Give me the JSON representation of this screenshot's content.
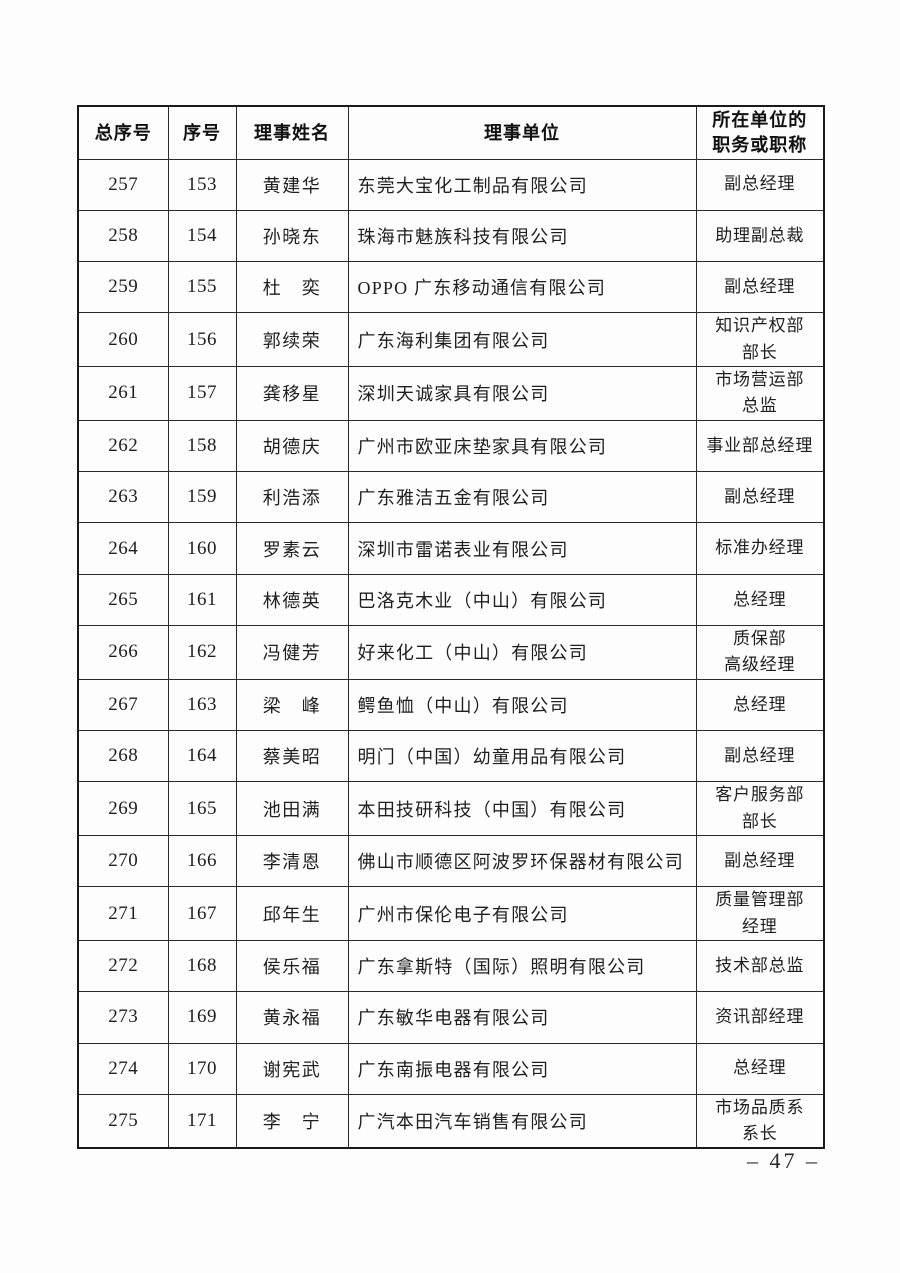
{
  "table": {
    "headers": [
      "总序号",
      "序号",
      "理事姓名",
      "理事单位",
      "所在单位的\n职务或职称"
    ],
    "rows": [
      {
        "total_no": "257",
        "no": "153",
        "name": "黄建华",
        "unit": "东莞大宝化工制品有限公司",
        "position": "副总经理"
      },
      {
        "total_no": "258",
        "no": "154",
        "name": "孙晓东",
        "unit": "珠海市魅族科技有限公司",
        "position": "助理副总裁"
      },
      {
        "total_no": "259",
        "no": "155",
        "name": "杜　奕",
        "unit": "OPPO 广东移动通信有限公司",
        "position": "副总经理"
      },
      {
        "total_no": "260",
        "no": "156",
        "name": "郭续荣",
        "unit": "广东海利集团有限公司",
        "position": "知识产权部\n部长"
      },
      {
        "total_no": "261",
        "no": "157",
        "name": "龚移星",
        "unit": "深圳天诚家具有限公司",
        "position": "市场营运部\n总监"
      },
      {
        "total_no": "262",
        "no": "158",
        "name": "胡德庆",
        "unit": "广州市欧亚床垫家具有限公司",
        "position": "事业部总经理"
      },
      {
        "total_no": "263",
        "no": "159",
        "name": "利浩添",
        "unit": "广东雅洁五金有限公司",
        "position": "副总经理"
      },
      {
        "total_no": "264",
        "no": "160",
        "name": "罗素云",
        "unit": "深圳市雷诺表业有限公司",
        "position": "标准办经理"
      },
      {
        "total_no": "265",
        "no": "161",
        "name": "林德英",
        "unit": "巴洛克木业（中山）有限公司",
        "position": "总经理"
      },
      {
        "total_no": "266",
        "no": "162",
        "name": "冯健芳",
        "unit": "好来化工（中山）有限公司",
        "position": "质保部\n高级经理"
      },
      {
        "total_no": "267",
        "no": "163",
        "name": "梁　峰",
        "unit": "鳄鱼恤（中山）有限公司",
        "position": "总经理"
      },
      {
        "total_no": "268",
        "no": "164",
        "name": "蔡美昭",
        "unit": "明门（中国）幼童用品有限公司",
        "position": "副总经理"
      },
      {
        "total_no": "269",
        "no": "165",
        "name": "池田满",
        "unit": "本田技研科技（中国）有限公司",
        "position": "客户服务部\n部长"
      },
      {
        "total_no": "270",
        "no": "166",
        "name": "李清恩",
        "unit": "佛山市顺德区阿波罗环保器材有限公司",
        "position": "副总经理"
      },
      {
        "total_no": "271",
        "no": "167",
        "name": "邱年生",
        "unit": "广州市保伦电子有限公司",
        "position": "质量管理部\n经理"
      },
      {
        "total_no": "272",
        "no": "168",
        "name": "侯乐福",
        "unit": "广东拿斯特（国际）照明有限公司",
        "position": "技术部总监"
      },
      {
        "total_no": "273",
        "no": "169",
        "name": "黄永福",
        "unit": "广东敏华电器有限公司",
        "position": "资讯部经理"
      },
      {
        "total_no": "274",
        "no": "170",
        "name": "谢宪武",
        "unit": "广东南振电器有限公司",
        "position": "总经理"
      },
      {
        "total_no": "275",
        "no": "171",
        "name": "李　宁",
        "unit": "广汽本田汽车销售有限公司",
        "position": "市场品质系\n系长"
      }
    ]
  },
  "footer": {
    "page_number": "– 47 –"
  }
}
